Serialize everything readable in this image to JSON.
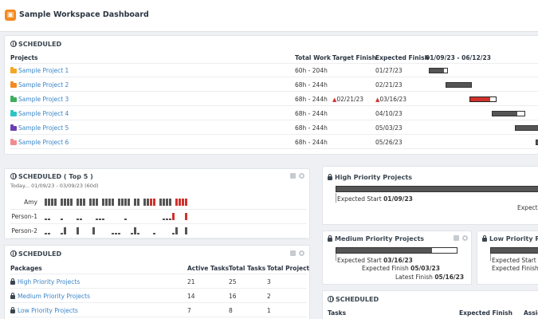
{
  "app": {
    "title": "Sample Workspace Dashboard",
    "logo_icon": "box-icon",
    "accent": "#f5891f"
  },
  "scheduled": {
    "title": "SCHEDULED",
    "columns": [
      "Projects",
      "Total Work",
      "Target Finish",
      "Expected Finish",
      "01/09/23 - 06/12/23"
    ],
    "projects": [
      {
        "name": "Sample Project 1",
        "color": "#f5a623",
        "work": "60h - 204h",
        "target": "",
        "expected": "01/27/23",
        "late": false
      },
      {
        "name": "Sample Project 2",
        "color": "#f5891f",
        "work": "68h - 244h",
        "target": "",
        "expected": "02/21/23",
        "late": false
      },
      {
        "name": "Sample Project 3",
        "color": "#3fae5a",
        "work": "68h - 244h",
        "target": "02/21/23",
        "expected": "03/16/23",
        "late": true
      },
      {
        "name": "Sample Project 4",
        "color": "#2ec4c4",
        "work": "68h - 244h",
        "target": "",
        "expected": "04/10/23",
        "late": false
      },
      {
        "name": "Sample Project 5",
        "color": "#6a3fb5",
        "work": "68h - 244h",
        "target": "",
        "expected": "05/03/23",
        "late": false
      },
      {
        "name": "Sample Project 6",
        "color": "#f28b8b",
        "work": "68h - 244h",
        "target": "",
        "expected": "05/26/23",
        "late": false
      }
    ]
  },
  "top5": {
    "title": "SCHEDULED ( Top 5 )",
    "subtitle": "Today... 01/09/23 - 03/09/23 (60d)",
    "people": [
      "Amy",
      "Person-1",
      "Person-2"
    ]
  },
  "packages": {
    "title": "SCHEDULED",
    "columns": [
      "Packages",
      "Active Tasks",
      "Total Tasks",
      "Total Projects"
    ],
    "rows": [
      {
        "name": "High Priority Projects",
        "active": "21",
        "total": "25",
        "projects": "3"
      },
      {
        "name": "Medium Priority Projects",
        "active": "14",
        "total": "16",
        "projects": "2"
      },
      {
        "name": "Low Priority Projects",
        "active": "7",
        "total": "8",
        "projects": "1"
      }
    ]
  },
  "high_priority": {
    "title": "High Priority Projects",
    "expected_start_label": "Expected Start",
    "expected_start": "01/09/23",
    "cut_label": "Expected"
  },
  "medium_priority": {
    "title": "Medium Priority Projects",
    "expected_start_label": "Expected Start",
    "expected_start": "03/16/23",
    "expected_finish_label": "Expected Finish",
    "expected_finish": "05/03/23",
    "latest_finish_label": "Latest Finish",
    "latest_finish": "05/16/23"
  },
  "low_priority": {
    "title": "Low Priority Projects",
    "expected_start_label": "Expected Start",
    "expected_finish_label": "Expected Finish"
  },
  "tasks": {
    "title": "SCHEDULED",
    "columns": [
      "Tasks",
      "Expected Finish",
      "Assig"
    ]
  }
}
